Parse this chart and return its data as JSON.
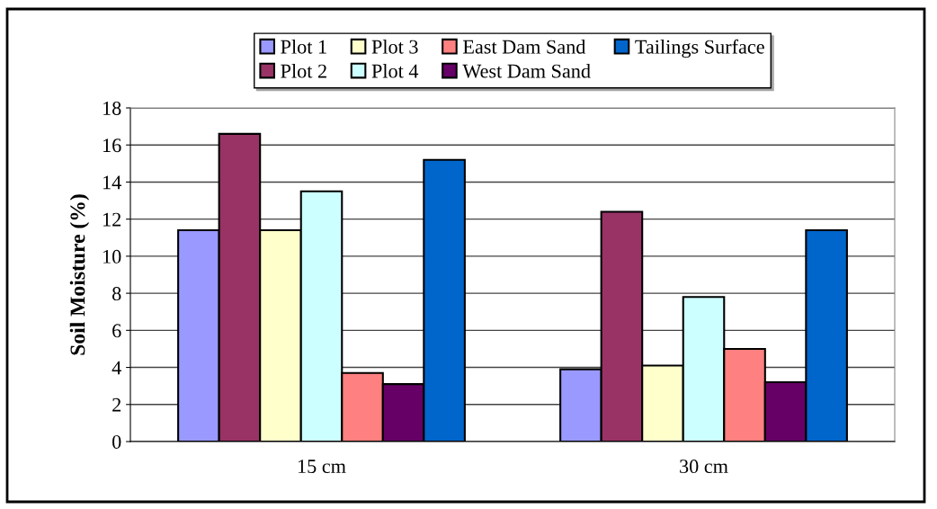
{
  "chart_data": {
    "type": "bar",
    "ylabel": "Soil Moisture (%)",
    "categories": [
      "15 cm",
      "30 cm"
    ],
    "series": [
      {
        "name": "Plot 1",
        "color": "#9999ff",
        "values": [
          11.4,
          3.9
        ]
      },
      {
        "name": "Plot 2",
        "color": "#993366",
        "values": [
          16.6,
          12.4
        ]
      },
      {
        "name": "Plot 3",
        "color": "#ffffcc",
        "values": [
          11.4,
          4.1
        ]
      },
      {
        "name": "Plot 4",
        "color": "#ccffff",
        "values": [
          13.5,
          7.8
        ]
      },
      {
        "name": "East Dam Sand",
        "color": "#ff8080",
        "values": [
          3.7,
          5.0
        ]
      },
      {
        "name": "West Dam Sand",
        "color": "#660066",
        "values": [
          3.1,
          3.2
        ]
      },
      {
        "name": "Tailings Surface",
        "color": "#0066cc",
        "values": [
          15.2,
          11.4
        ]
      }
    ],
    "ylim": [
      0,
      18
    ],
    "yticks": [
      0,
      2,
      4,
      6,
      8,
      10,
      12,
      14,
      16,
      18
    ],
    "grid": "y",
    "legend": "top"
  }
}
